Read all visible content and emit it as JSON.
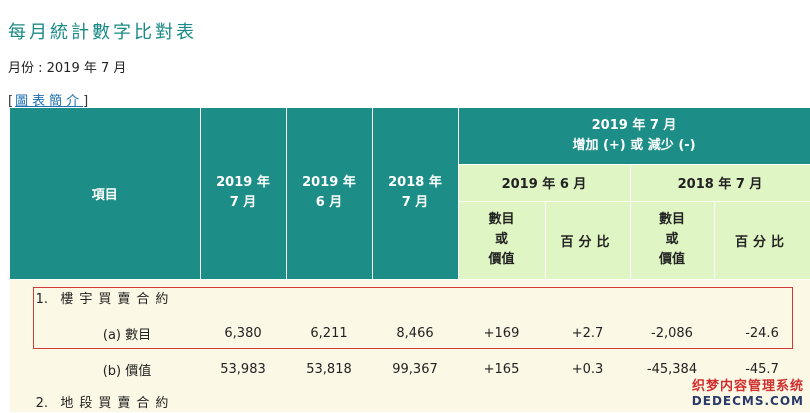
{
  "title": "每月統計數字比對表",
  "month_label": "月份 : 2019 年 7 月",
  "intro": {
    "open": "[",
    "link": "圖表簡介",
    "close": "]"
  },
  "table": {
    "header": {
      "item": "項目",
      "col_2019_7": [
        "2019 年",
        "7 月"
      ],
      "col_2019_6": [
        "2019 年",
        "6 月"
      ],
      "col_2018_7": [
        "2018 年",
        "7 月"
      ],
      "change_group": [
        "2019 年 7 月",
        "增加 (+) 或 減少 (-)"
      ],
      "vs_2019_6": "2019 年 6 月",
      "vs_2018_7": "2018 年 7 月",
      "number_or_value": [
        "數目",
        "或",
        "價值"
      ],
      "percent": "百分比"
    },
    "rows": [
      {
        "label": "1.",
        "label_text": "樓宇買賣合約",
        "values": [
          "",
          "",
          "",
          "",
          "",
          "",
          ""
        ]
      },
      {
        "label": "(a) 數目",
        "values": [
          "6,380",
          "6,211",
          "8,466",
          "+169",
          "+2.7",
          "-2,086",
          "-24.6"
        ]
      },
      {
        "label": "(b) 價值",
        "values": [
          "53,983",
          "53,818",
          "99,367",
          "+165",
          "+0.3",
          "-45,384",
          "-45.7"
        ]
      },
      {
        "label": "2.",
        "label_text": "地段買賣合約",
        "values": [
          "",
          "",
          "",
          "",
          "",
          "",
          ""
        ]
      }
    ]
  },
  "watermark": {
    "line1": "织梦内容管理系统",
    "line2": "DEDECMS.COM"
  },
  "colors": {
    "title": "#1a8a86",
    "header_teal": "#1d8e87",
    "header_lime": "#dff5c3",
    "body_row": "#fcf8e6",
    "highlight_border": "#d23a3a",
    "link": "#1a6fb0"
  }
}
